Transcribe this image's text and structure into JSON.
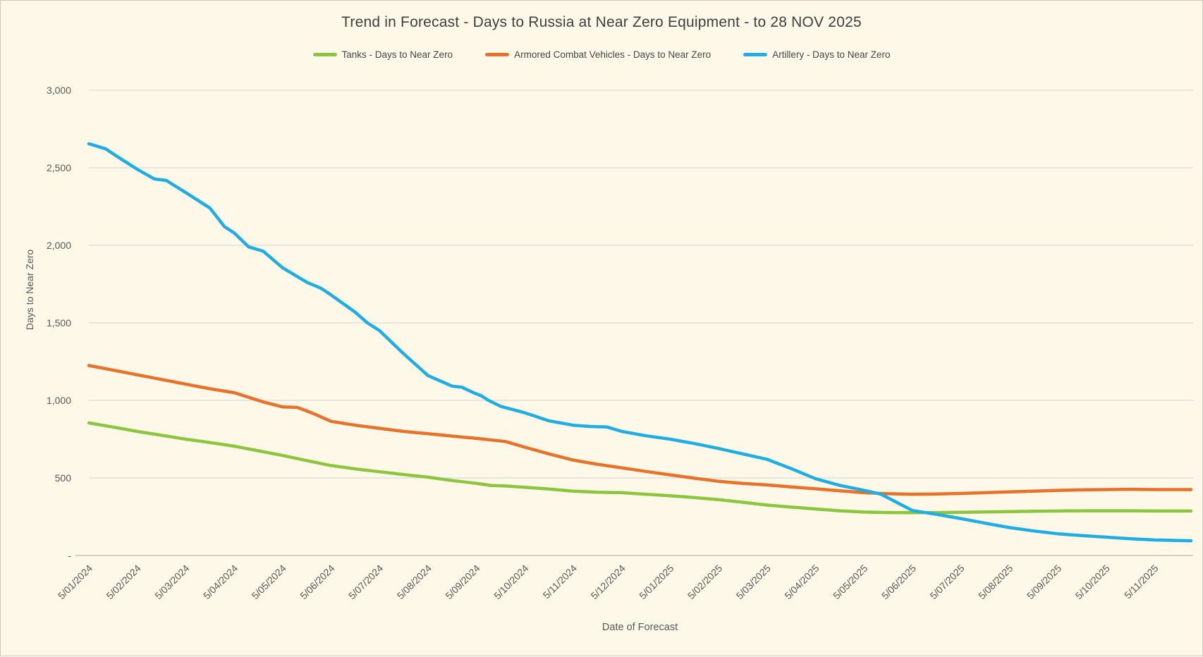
{
  "frame": {
    "background": "#fdf8e8",
    "border_color": "#cccbc4"
  },
  "chart_data": {
    "type": "line",
    "title": "Trend in Forecast - Days to Russia at Near Zero Equipment - to 28 NOV 2025",
    "xlabel": "Date of Forecast",
    "ylabel": "Days to Near Zero",
    "ylim": [
      0,
      3000
    ],
    "grid": true,
    "legend_position": "top",
    "grid_color": "#d9d9d9",
    "axis_line_color": "#c2c1ba",
    "text_color": "#595959",
    "title_color": "#3f3f3f",
    "y_ticks": [
      {
        "label": "3,000",
        "value": 3000
      },
      {
        "label": "2,500",
        "value": 2500
      },
      {
        "label": "2,000",
        "value": 2000
      },
      {
        "label": "1,500",
        "value": 1500
      },
      {
        "label": "1,000",
        "value": 1000
      },
      {
        "label": "500",
        "value": 500
      },
      {
        "label": "-",
        "value": 0
      }
    ],
    "x_tick_labels": [
      "5/01/2024",
      "5/02/2024",
      "5/03/2024",
      "5/04/2024",
      "5/05/2024",
      "5/06/2024",
      "5/07/2024",
      "5/08/2024",
      "5/09/2024",
      "5/10/2024",
      "5/11/2024",
      "5/12/2024",
      "5/01/2025",
      "5/02/2025",
      "5/03/2025",
      "5/04/2025",
      "5/05/2025",
      "5/06/2025",
      "5/07/2025",
      "5/08/2025",
      "5/09/2025",
      "5/10/2025",
      "5/11/2025"
    ],
    "x_index_end": 22.75,
    "series": [
      {
        "id": "tanks",
        "name": "Tanks - Days to Near Zero",
        "color": "#8cc63f",
        "x": [
          0,
          0.5,
          1,
          1.5,
          2,
          2.5,
          3,
          3.5,
          4,
          4.5,
          5,
          5.5,
          6,
          6.5,
          7,
          7.5,
          8,
          8.3,
          8.6,
          9,
          9.5,
          10,
          10.5,
          11,
          11.5,
          12,
          12.5,
          13,
          13.5,
          14,
          14.5,
          15,
          15.5,
          16,
          16.5,
          17,
          17.5,
          18,
          18.5,
          19,
          19.5,
          20,
          20.5,
          21,
          21.5,
          22,
          22.75
        ],
        "values": [
          855,
          828,
          800,
          775,
          750,
          728,
          705,
          675,
          645,
          612,
          580,
          558,
          540,
          522,
          505,
          483,
          465,
          452,
          448,
          440,
          428,
          415,
          408,
          405,
          395,
          385,
          373,
          360,
          343,
          325,
          312,
          300,
          288,
          280,
          277,
          276,
          277,
          278,
          281,
          283,
          285,
          287,
          288,
          288,
          288,
          287,
          287
        ]
      },
      {
        "id": "acv",
        "name": "Armored Combat Vehicles - Days to Near Zero",
        "color": "#e8722a",
        "x": [
          0,
          0.5,
          1,
          1.5,
          2,
          2.5,
          3,
          3.3,
          3.6,
          4,
          4.3,
          4.6,
          5,
          5.5,
          6,
          6.5,
          7,
          7.5,
          8,
          8.6,
          9,
          9.5,
          10,
          10.5,
          11,
          11.5,
          12,
          12.5,
          13,
          13.5,
          14,
          14.5,
          15,
          15.5,
          16,
          16.5,
          17,
          17.5,
          18,
          18.5,
          19,
          19.5,
          20,
          20.5,
          21,
          21.5,
          22,
          22.75
        ],
        "values": [
          1225,
          1195,
          1165,
          1135,
          1105,
          1075,
          1050,
          1020,
          990,
          958,
          955,
          920,
          865,
          840,
          820,
          800,
          785,
          770,
          755,
          735,
          698,
          655,
          615,
          588,
          565,
          542,
          520,
          498,
          478,
          465,
          455,
          442,
          430,
          417,
          405,
          398,
          395,
          397,
          400,
          405,
          410,
          415,
          420,
          423,
          425,
          427,
          425,
          425
        ]
      },
      {
        "id": "artillery",
        "name": "Artillery - Days to Near Zero",
        "color": "#1fade4",
        "x": [
          0,
          0.35,
          0.6,
          1,
          1.35,
          1.6,
          2,
          2.5,
          2.8,
          3,
          3.3,
          3.6,
          4,
          4.5,
          4.8,
          5,
          5.5,
          5.75,
          6,
          6.5,
          7,
          7.5,
          7.7,
          7.95,
          8.1,
          8.25,
          8.5,
          9,
          9.5,
          10,
          10.35,
          10.7,
          11,
          11.5,
          12,
          12.5,
          13,
          13.5,
          14,
          14.5,
          15,
          15.5,
          16,
          16.35,
          17,
          17.5,
          18,
          18.5,
          19,
          19.5,
          20,
          20.5,
          21,
          21.5,
          22,
          22.75
        ],
        "values": [
          2655,
          2622,
          2570,
          2490,
          2428,
          2418,
          2340,
          2240,
          2120,
          2080,
          1990,
          1962,
          1855,
          1762,
          1722,
          1680,
          1568,
          1500,
          1450,
          1300,
          1160,
          1092,
          1085,
          1048,
          1030,
          1000,
          962,
          920,
          868,
          840,
          832,
          828,
          800,
          772,
          750,
          722,
          690,
          655,
          620,
          560,
          495,
          452,
          420,
          395,
          290,
          265,
          238,
          208,
          180,
          158,
          140,
          128,
          118,
          108,
          100,
          95
        ]
      }
    ]
  }
}
